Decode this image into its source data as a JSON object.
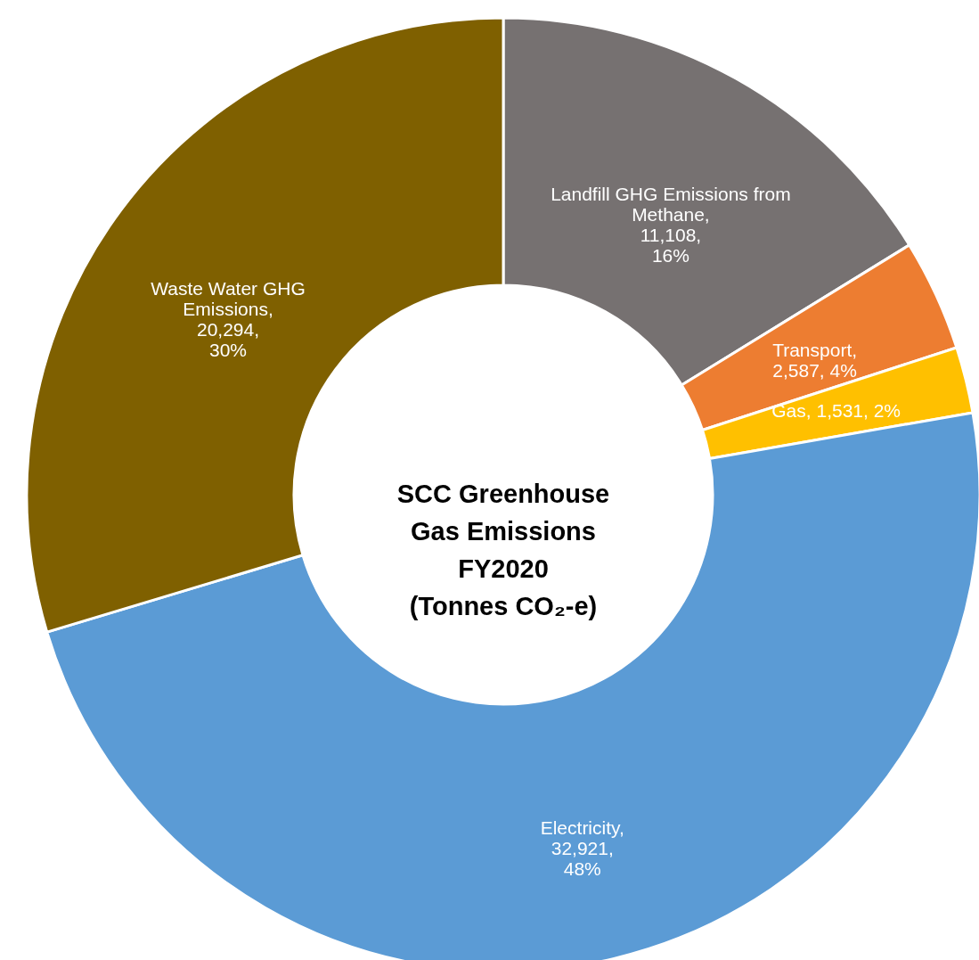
{
  "chart_data": {
    "type": "donut",
    "title": "SCC Greenhouse\nGas Emissions\nFY2020\n(Tonnes CO₂-e)",
    "categories": [
      "Landfill GHG Emissions from Methane",
      "Transport",
      "Gas",
      "Electricity",
      "Waste Water GHG Emissions"
    ],
    "values": [
      11108,
      2587,
      1531,
      32921,
      20294
    ],
    "colors": [
      "#767171",
      "#ed7d31",
      "#ffc000",
      "#5b9bd5",
      "#7f6000"
    ],
    "value_labels": [
      ",\n11,108,\n16%",
      ",\n2,587, 4%",
      ", 1,531, 2%",
      ",\n32,921,\n48%",
      ",\n20,294,\n30%"
    ]
  }
}
